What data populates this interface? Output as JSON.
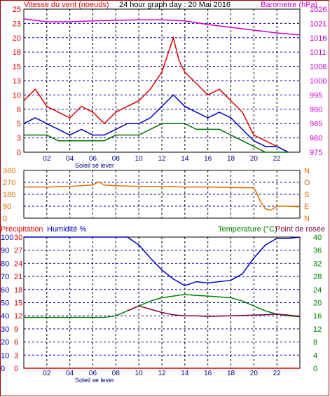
{
  "chart_data": [
    {
      "type": "line",
      "title": "24 hour graph day : 20 Mai 2016",
      "y_left_label": "Vitesse du vent (noeuds)",
      "y_right_label": "Barometre (hPa)",
      "y_left_ticks": [
        "0",
        "3",
        "5",
        "8",
        "10",
        "13",
        "15",
        "18",
        "20",
        "23",
        "25"
      ],
      "y_right_ticks": [
        "975",
        "980",
        "985",
        "990",
        "995",
        "1000",
        "1006",
        "1011",
        "1016",
        "1021",
        "1026"
      ],
      "x_ticks": [
        "02",
        "04",
        "06",
        "08",
        "10",
        "12",
        "14",
        "16",
        "18",
        "20",
        "22",
        ""
      ],
      "sunrise_label": "Soleil se lever",
      "series": [
        {
          "name": "gust",
          "color": "#e00000",
          "axis": "left",
          "x": [
            0,
            1,
            2,
            3,
            4,
            5,
            6,
            7,
            8,
            9,
            10,
            11,
            12,
            12.5,
            13,
            13.5,
            14,
            15,
            16,
            17,
            18,
            19,
            20,
            21,
            22,
            23
          ],
          "y": [
            9,
            11,
            8,
            7,
            6,
            8,
            7,
            5,
            7,
            8,
            9,
            11,
            14,
            17,
            20,
            16,
            14,
            12,
            10,
            11,
            9,
            7,
            3,
            2,
            1,
            0
          ]
        },
        {
          "name": "wind",
          "color": "#0000c0",
          "axis": "left",
          "x": [
            0,
            1,
            2,
            3,
            4,
            5,
            6,
            7,
            8,
            9,
            10,
            11,
            12,
            13,
            14,
            15,
            16,
            17,
            18,
            19,
            20,
            21,
            22,
            23
          ],
          "y": [
            5,
            6,
            5,
            4,
            3,
            4,
            3,
            3,
            4,
            5,
            5,
            6,
            8,
            10,
            8,
            7,
            6,
            7,
            6,
            4,
            2,
            1,
            1,
            0
          ]
        },
        {
          "name": "wind-avg",
          "color": "#007000",
          "axis": "left",
          "x": [
            0,
            1,
            2,
            3,
            4,
            5,
            6,
            7,
            8,
            9,
            10,
            11,
            12,
            13,
            14,
            15,
            16,
            17,
            18,
            19,
            20,
            21,
            22,
            23
          ],
          "y": [
            3,
            3,
            3,
            2,
            2,
            2,
            2,
            2,
            3,
            3,
            3,
            4,
            5,
            5,
            5,
            4,
            4,
            4,
            3,
            2,
            1,
            0,
            0,
            0
          ]
        },
        {
          "name": "pressure",
          "color": "#cc00cc",
          "axis": "right",
          "x": [
            0,
            2,
            4,
            6,
            8,
            10,
            12,
            14,
            16,
            18,
            20,
            22,
            24
          ],
          "y": [
            1022.5,
            1021.5,
            1021.5,
            1021.8,
            1022,
            1022.2,
            1022.2,
            1021.8,
            1020.5,
            1019.5,
            1018.5,
            1017.5,
            1016.8
          ]
        }
      ],
      "ylim": [
        0,
        25
      ],
      "ylim_right": [
        975,
        1026
      ]
    },
    {
      "type": "line",
      "y_left_ticks": [
        "360",
        "270",
        "180",
        "90",
        "0"
      ],
      "y_right_ticks": [
        "N",
        "O",
        "S",
        "E",
        "N"
      ],
      "series": [
        {
          "name": "direction",
          "color": "#e07000",
          "x": [
            0,
            2,
            4,
            6,
            6.5,
            7,
            8,
            10,
            12,
            14,
            16,
            18,
            19,
            20,
            20.3,
            20.6,
            21,
            21.5,
            22,
            23,
            24
          ],
          "y": [
            235,
            235,
            240,
            250,
            275,
            250,
            245,
            240,
            240,
            235,
            235,
            232,
            230,
            230,
            180,
            120,
            70,
            60,
            90,
            90,
            85
          ]
        }
      ],
      "ylim": [
        0,
        360
      ]
    },
    {
      "type": "line",
      "y_far_left_label": "Précipitation",
      "y_left_label": "Humidité %",
      "y_right_label": "Temperature (°C)",
      "y_right2_label": "Point de rosée",
      "y_precip_ticks": [
        "30",
        "27",
        "24",
        "21",
        "18",
        "15",
        "12",
        "9",
        "6",
        "3",
        "0"
      ],
      "y_humidity_ticks": [
        "100",
        "90",
        "80",
        "70",
        "60",
        "50",
        "40",
        "30",
        "20",
        "10",
        "0"
      ],
      "y_temp_ticks": [
        "40",
        "36",
        "32",
        "28",
        "24",
        "20",
        "16",
        "12",
        "8",
        "4",
        "0"
      ],
      "x_ticks": [
        "02",
        "04",
        "06",
        "08",
        "10",
        "12",
        "14",
        "16",
        "18",
        "20",
        "22",
        ""
      ],
      "sunrise_label": "Soleil se lever",
      "series": [
        {
          "name": "humidity",
          "color": "#0000c0",
          "axis": "humidity",
          "x": [
            0,
            4,
            8,
            9,
            10,
            11,
            12,
            13,
            14,
            15,
            16,
            18,
            19,
            20,
            21,
            22,
            23,
            24
          ],
          "y": [
            100,
            100,
            100,
            100,
            94,
            84,
            75,
            68,
            63,
            66,
            65,
            67,
            72,
            84,
            94,
            99,
            99,
            100
          ]
        },
        {
          "name": "temperature",
          "color": "#008000",
          "axis": "temp",
          "x": [
            0,
            3,
            6,
            7,
            8,
            9,
            10,
            11,
            12,
            13,
            14,
            15,
            16,
            18,
            19,
            20,
            21,
            22,
            23,
            24
          ],
          "y": [
            15.5,
            15.5,
            15.5,
            15.5,
            16,
            17.5,
            19,
            20.5,
            21.5,
            22,
            22.5,
            22.2,
            22,
            21.5,
            20.5,
            19,
            17.5,
            16.5,
            16,
            15.7
          ]
        },
        {
          "name": "dewpoint",
          "color": "#800040",
          "axis": "temp",
          "x": [
            9,
            10,
            11,
            12,
            13,
            14,
            15,
            16,
            18,
            20,
            22,
            23,
            24
          ],
          "y": [
            17.5,
            19,
            18,
            17,
            16.3,
            16,
            16,
            15.8,
            16,
            16.2,
            16.5,
            16.2,
            15.8
          ]
        },
        {
          "name": "rain",
          "color": "#e00000",
          "axis": "precip",
          "x": [
            0,
            24
          ],
          "y": [
            0,
            0
          ]
        }
      ],
      "ylim_humidity": [
        0,
        100
      ],
      "ylim_temp": [
        0,
        40
      ],
      "ylim_precip": [
        0,
        30
      ]
    }
  ],
  "colors": {
    "frame": "#a00000",
    "left_axis_text": "#e00000",
    "right_axis_text": "#cc00cc",
    "dir_text": "#e07000",
    "humidity_text": "#0000c0",
    "temp_text": "#008000",
    "dew_text": "#800040",
    "grid": "#0000c0"
  }
}
